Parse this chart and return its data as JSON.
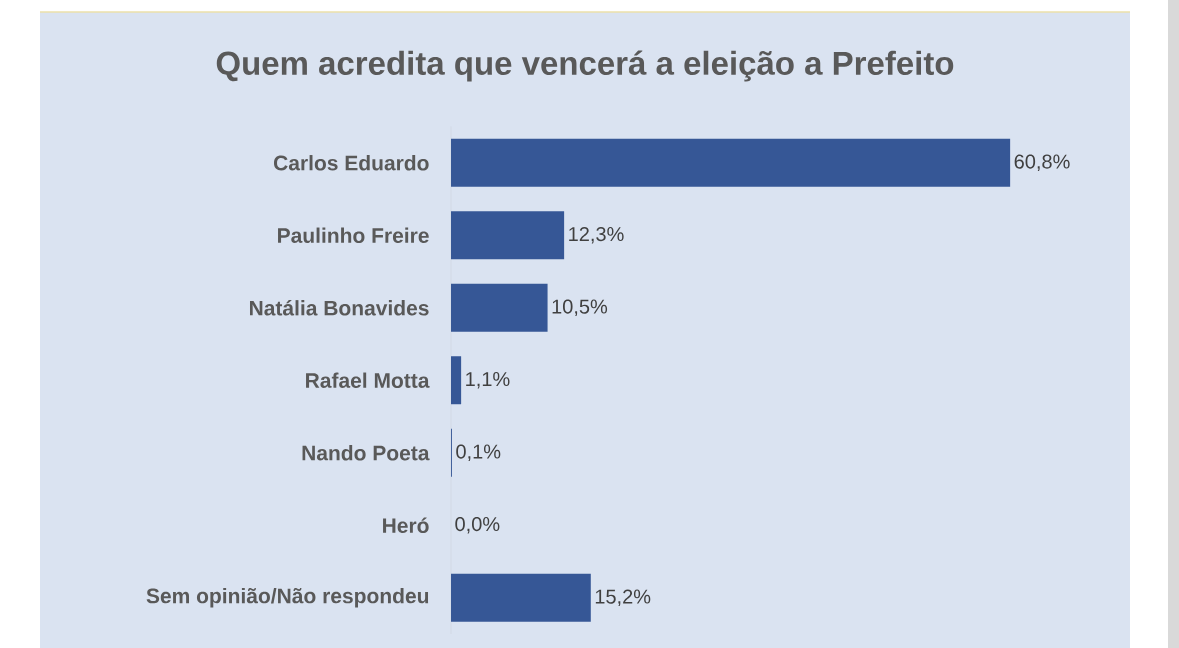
{
  "chart_data": {
    "type": "bar",
    "orientation": "horizontal",
    "title": "Quem acredita que vencerá a eleição a Prefeito",
    "categories": [
      "Carlos Eduardo",
      "Paulinho Freire",
      "Natália Bonavides",
      "Rafael Motta",
      "Nando Poeta",
      "Heró",
      "Sem opinião/Não respondeu"
    ],
    "values": [
      60.8,
      12.3,
      10.5,
      1.1,
      0.1,
      0.0,
      15.2
    ],
    "value_labels": [
      "60,8%",
      "12,3%",
      "10,5%",
      "1,1%",
      "0,1%",
      "0,0%",
      "15,2%"
    ],
    "color": "#365796"
  }
}
